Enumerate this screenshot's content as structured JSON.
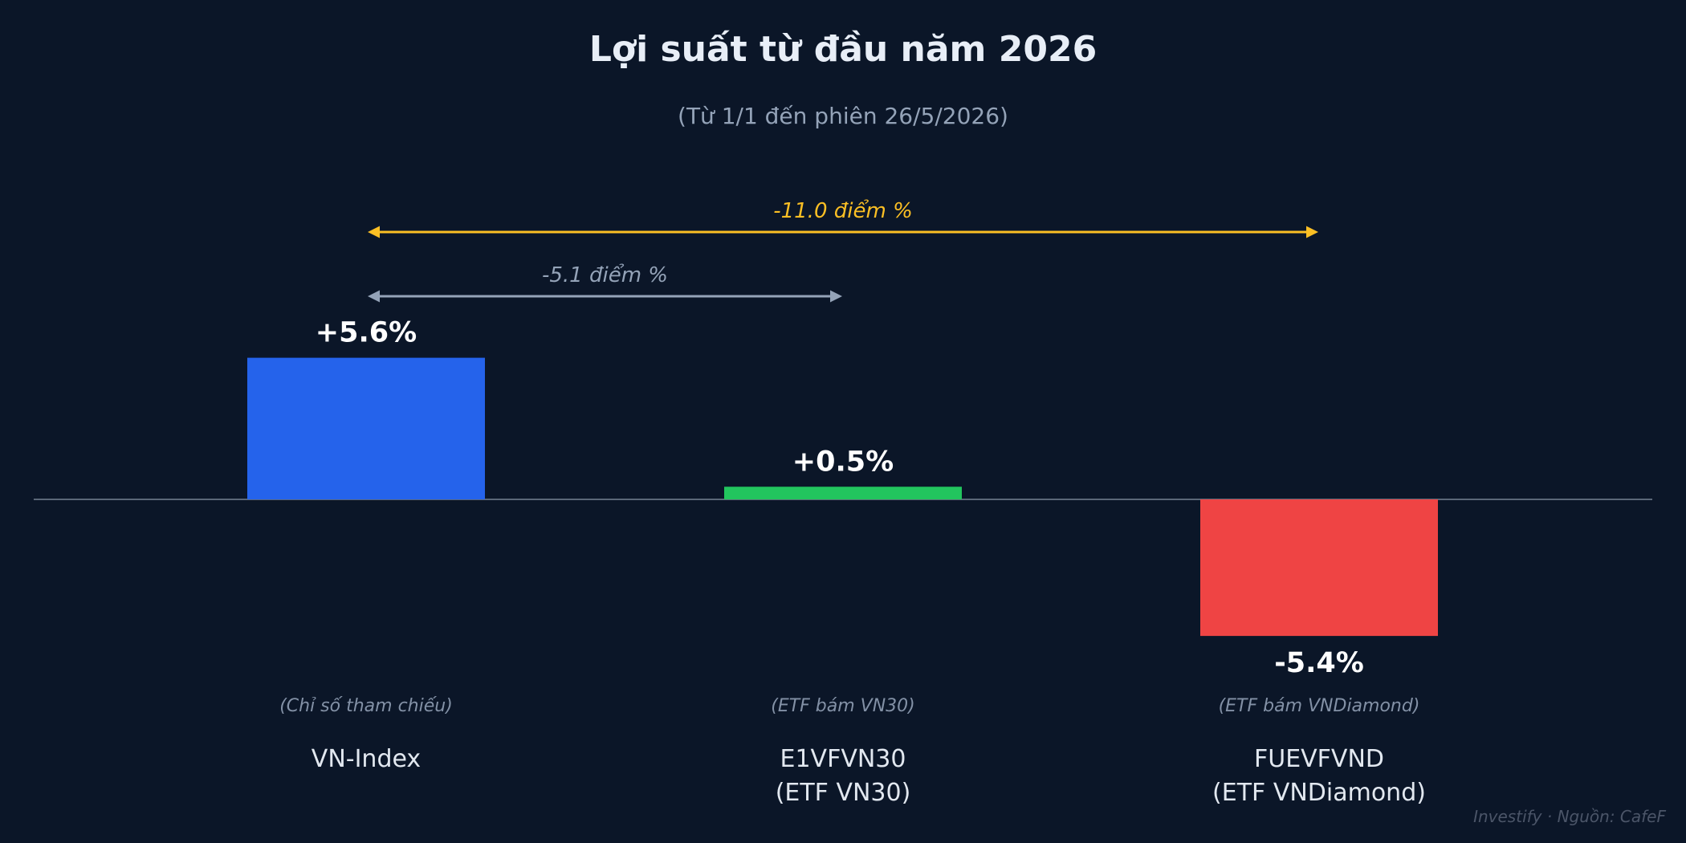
{
  "chart_data": {
    "type": "bar",
    "title": "Lợi suất từ đầu năm 2026",
    "subtitle": "(Từ 1/1 đến phiên 26/5/2026)",
    "categories": [
      {
        "lines": [
          "VN-Index"
        ],
        "note": "(Chỉ số tham chiếu)"
      },
      {
        "lines": [
          "E1VFVN30",
          "(ETF VN30)"
        ],
        "note": "(ETF bám VN30)"
      },
      {
        "lines": [
          "FUEVFVND",
          "(ETF VNDiamond)"
        ],
        "note": "(ETF bám VNDiamond)"
      }
    ],
    "values": [
      5.6,
      0.5,
      -5.4
    ],
    "value_labels": [
      "+5.6%",
      "+0.5%",
      "-5.4%"
    ],
    "colors": [
      "#2563eb",
      "#22c55e",
      "#ef4444"
    ],
    "differences": [
      {
        "label": "-5.1 điểm %",
        "from": 0,
        "to": 1,
        "color": "#94a3b8"
      },
      {
        "label": "-11.0 điểm %",
        "from": 0,
        "to": 2,
        "color": "#fbbf24"
      }
    ],
    "source": "Investify · Nguồn: CafeF",
    "grid": false,
    "legend": "none"
  }
}
